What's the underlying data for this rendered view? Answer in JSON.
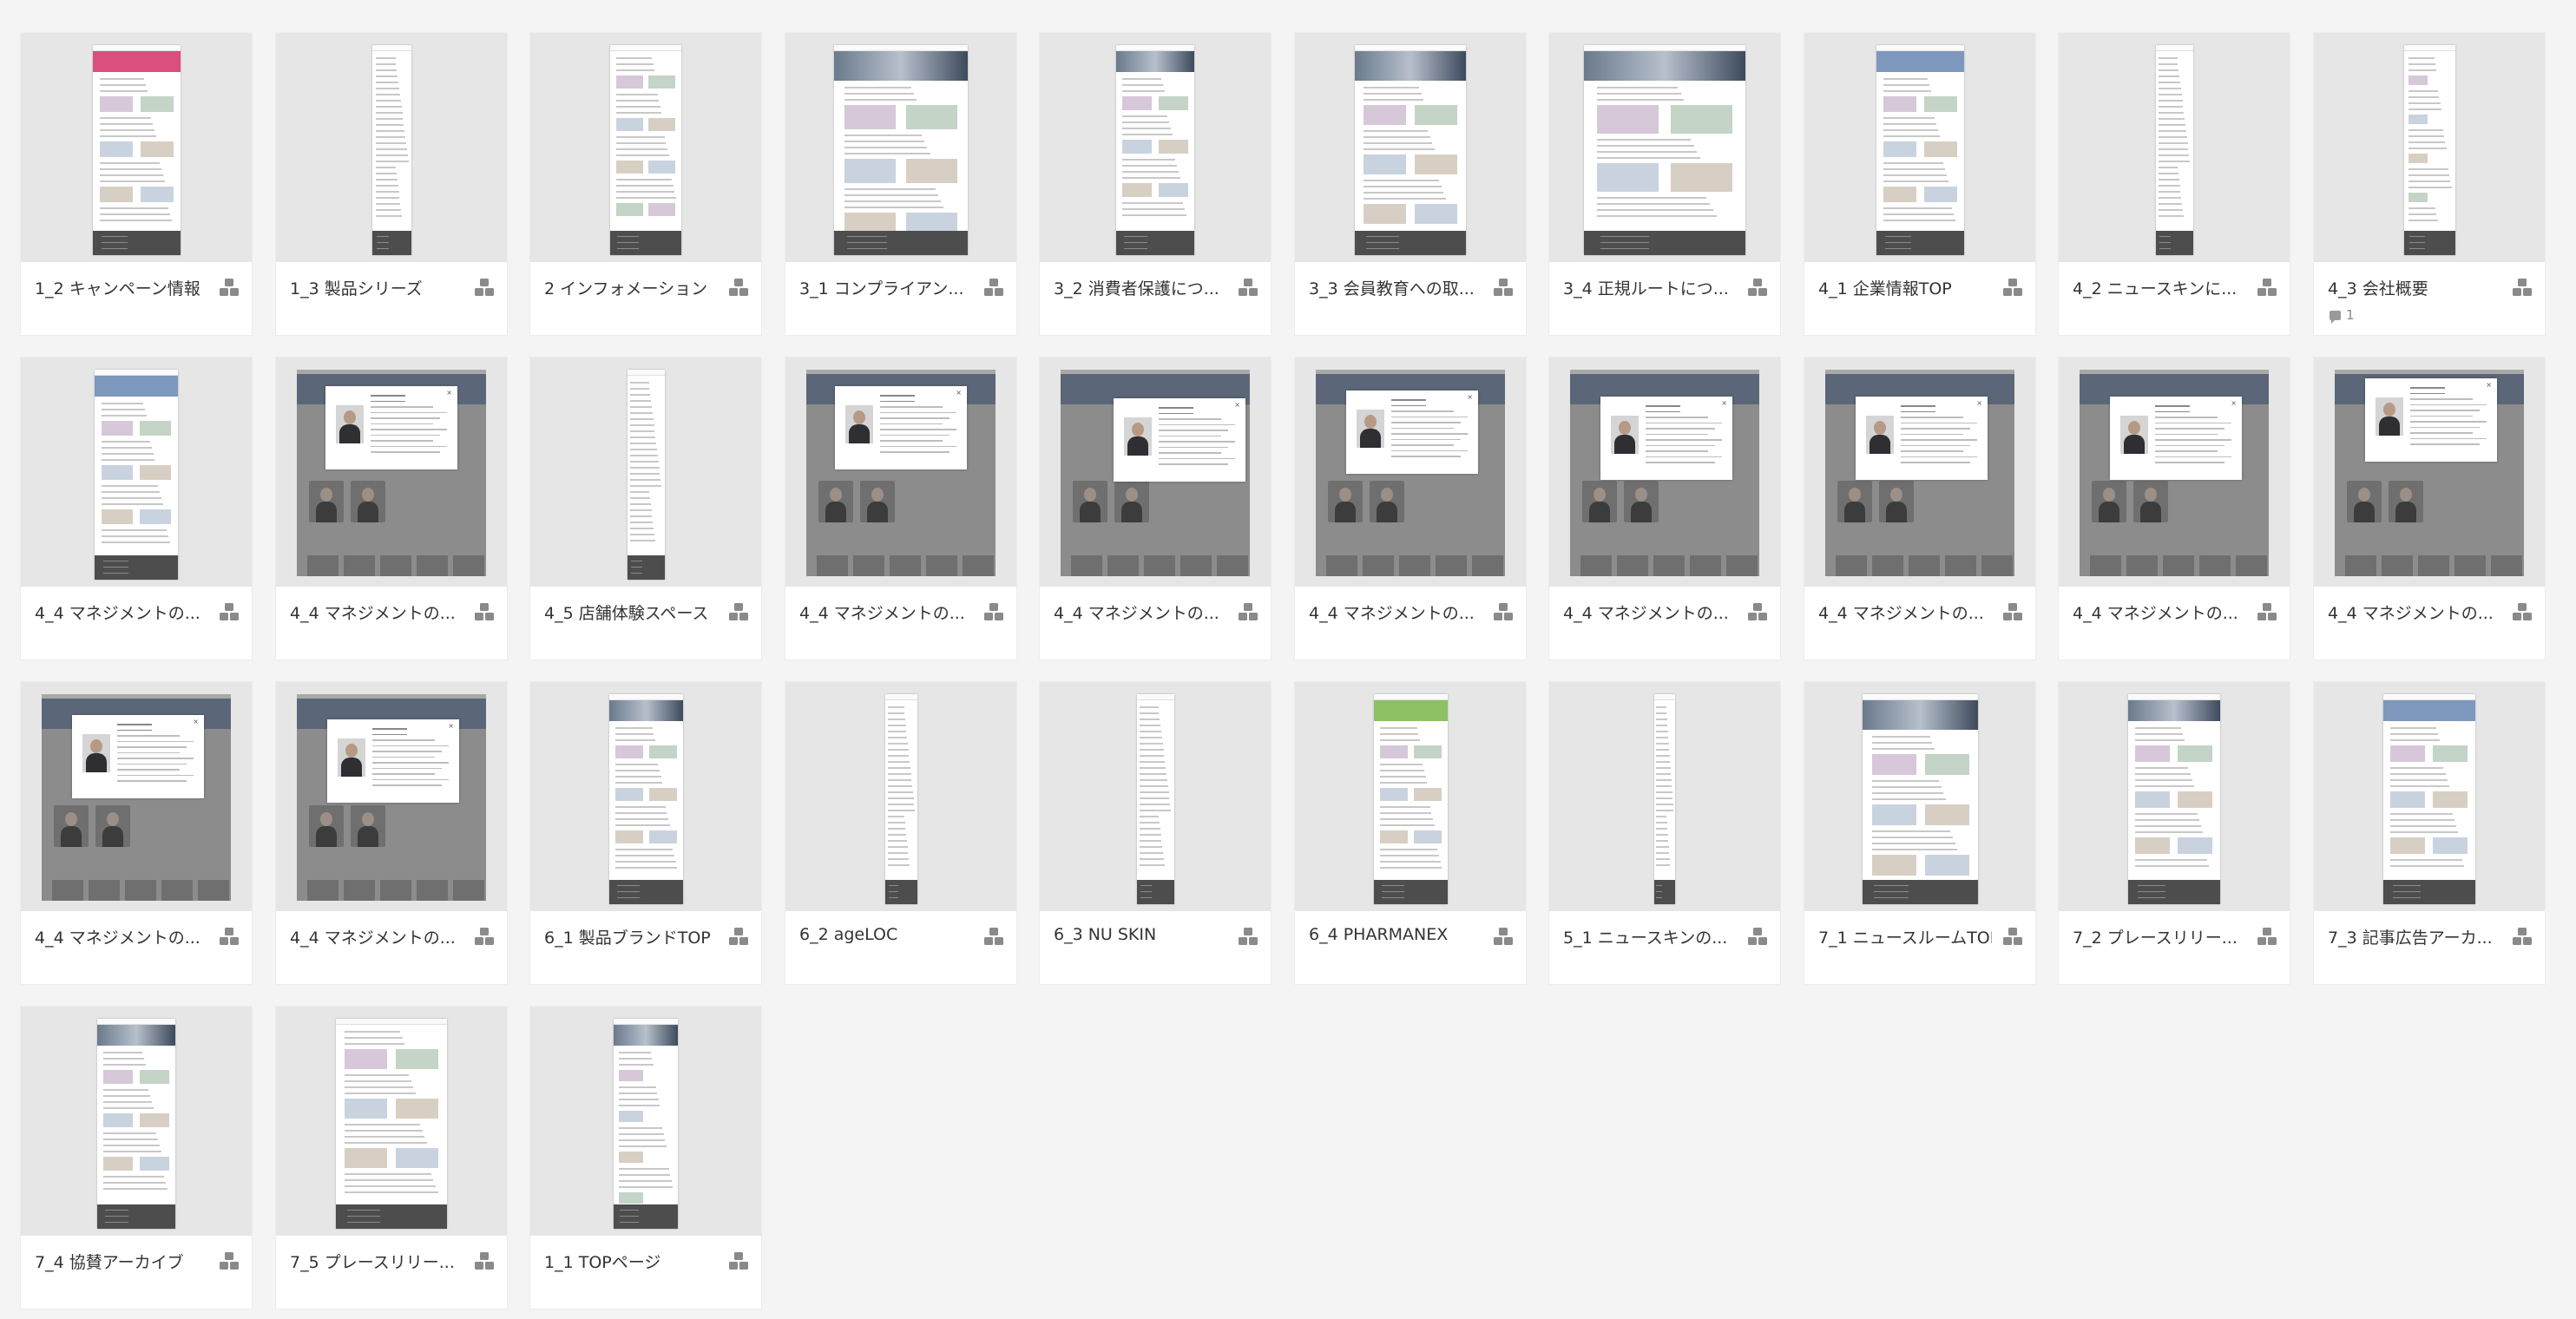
{
  "icons": {
    "group": "group-icon",
    "comment": "comment-icon",
    "close": "close-icon"
  },
  "colors": {
    "background": "#f4f4f4",
    "card": "#ffffff",
    "thumb": "#e6e6e6",
    "footer": "#4d4d4d"
  },
  "cards": [
    {
      "title": "1_2 キャンペーン情報",
      "kind": "page",
      "hero": "pink",
      "w": 0.38,
      "comments": ""
    },
    {
      "title": "1_3 製品シリーズ",
      "kind": "page",
      "hero": "none",
      "w": 0.17,
      "comments": ""
    },
    {
      "title": "2 インフォメーション",
      "kind": "page",
      "hero": "none",
      "w": 0.31,
      "comments": ""
    },
    {
      "title": "3_1 コンプライアン...",
      "kind": "page",
      "hero": "photo",
      "w": 0.58,
      "comments": ""
    },
    {
      "title": "3_2 消費者保護につ...",
      "kind": "page",
      "hero": "photo",
      "w": 0.34,
      "comments": ""
    },
    {
      "title": "3_3 会員教育への取...",
      "kind": "page",
      "hero": "photo",
      "w": 0.48,
      "comments": ""
    },
    {
      "title": "3_4 正規ルートにつ...",
      "kind": "page",
      "hero": "photo",
      "w": 0.7,
      "comments": ""
    },
    {
      "title": "4_1 企業情報TOP",
      "kind": "page",
      "hero": "blue",
      "w": 0.38,
      "comments": ""
    },
    {
      "title": "4_2 ニュースキンに...",
      "kind": "page",
      "hero": "none",
      "w": 0.16,
      "comments": ""
    },
    {
      "title": "4_3 会社概要",
      "kind": "page",
      "hero": "none",
      "w": 0.22,
      "comments": "1"
    },
    {
      "title": "4_4 マネジメントの...",
      "kind": "page",
      "hero": "blue",
      "w": 0.36,
      "comments": ""
    },
    {
      "title": "4_4 マネジメントの...",
      "kind": "mgmt",
      "mx": 0.15,
      "my": 0.08,
      "comments": ""
    },
    {
      "title": "4_5 店舗体験スペース",
      "kind": "page",
      "hero": "none",
      "w": 0.16,
      "comments": ""
    },
    {
      "title": "4_4 マネジメントの...",
      "kind": "mgmt",
      "mx": 0.15,
      "my": 0.08,
      "comments": ""
    },
    {
      "title": "4_4 マネジメントの...",
      "kind": "mgmt",
      "mx": 0.28,
      "my": 0.14,
      "comments": ""
    },
    {
      "title": "4_4 マネジメントの...",
      "kind": "mgmt",
      "mx": 0.16,
      "my": 0.1,
      "comments": ""
    },
    {
      "title": "4_4 マネジメントの...",
      "kind": "mgmt",
      "mx": 0.16,
      "my": 0.13,
      "comments": ""
    },
    {
      "title": "4_4 マネジメントの...",
      "kind": "mgmt",
      "mx": 0.16,
      "my": 0.13,
      "comments": ""
    },
    {
      "title": "4_4 マネジメントの...",
      "kind": "mgmt",
      "mx": 0.16,
      "my": 0.13,
      "comments": ""
    },
    {
      "title": "4_4 マネジメントの...",
      "kind": "mgmt",
      "mx": 0.16,
      "my": 0.04,
      "comments": ""
    },
    {
      "title": "4_4 マネジメントの...",
      "kind": "mgmt",
      "mx": 0.16,
      "my": 0.1,
      "comments": ""
    },
    {
      "title": "4_4 マネジメントの...",
      "kind": "mgmt",
      "mx": 0.16,
      "my": 0.12,
      "comments": ""
    },
    {
      "title": "6_1 製品ブランドTOP",
      "kind": "page",
      "hero": "photo",
      "w": 0.32,
      "comments": ""
    },
    {
      "title": "6_2 ageLOC",
      "kind": "page",
      "hero": "none",
      "w": 0.14,
      "comments": ""
    },
    {
      "title": "6_3 NU SKIN",
      "kind": "page",
      "hero": "none",
      "w": 0.16,
      "comments": ""
    },
    {
      "title": "6_4 PHARMANEX",
      "kind": "page",
      "hero": "green",
      "w": 0.32,
      "comments": ""
    },
    {
      "title": "5_1 ニュースキンの...",
      "kind": "page",
      "hero": "none",
      "w": 0.09,
      "comments": ""
    },
    {
      "title": "7_1 ニュースルームTOP",
      "kind": "page",
      "hero": "photo",
      "w": 0.5,
      "comments": ""
    },
    {
      "title": "7_2 プレースリリー...",
      "kind": "page",
      "hero": "photo",
      "w": 0.4,
      "comments": ""
    },
    {
      "title": "7_3 記事広告アーカ...",
      "kind": "page",
      "hero": "blue",
      "w": 0.4,
      "comments": ""
    },
    {
      "title": "7_4 協賛アーカイブ",
      "kind": "page",
      "hero": "photo",
      "w": 0.34,
      "comments": ""
    },
    {
      "title": "7_5 プレースリリー...",
      "kind": "page",
      "hero": "none",
      "w": 0.48,
      "comments": ""
    },
    {
      "title": "1_1 TOPページ",
      "kind": "page",
      "hero": "photo",
      "w": 0.28,
      "comments": ""
    }
  ]
}
